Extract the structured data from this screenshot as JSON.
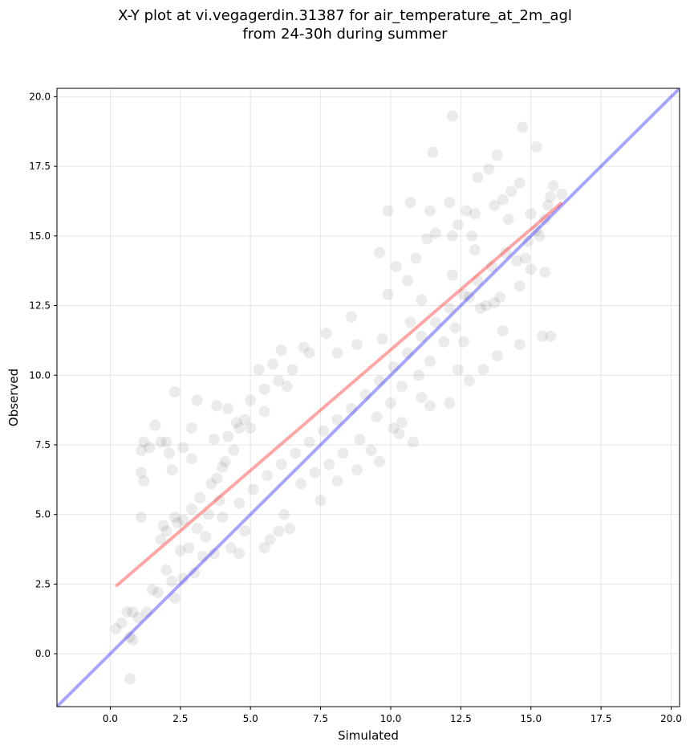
{
  "title_line1": "X-Y plot at vi.vegagerdin.31387 for air_temperature_at_2m_agl",
  "title_line2": "from 24-30h during summer",
  "chart_data": {
    "type": "scatter",
    "title": "X-Y plot at vi.vegagerdin.31387 for air_temperature_at_2m_agl from 24-30h during summer",
    "xlabel": "Simulated",
    "ylabel": "Observed",
    "xlim": [
      -1.9,
      20.3
    ],
    "ylim": [
      -1.9,
      20.3
    ],
    "xticks": [
      "0.0",
      "2.5",
      "5.0",
      "7.5",
      "10.0",
      "12.5",
      "15.0",
      "17.5",
      "20.0"
    ],
    "yticks": [
      "0.0",
      "2.5",
      "5.0",
      "7.5",
      "10.0",
      "12.5",
      "15.0",
      "17.5",
      "20.0"
    ],
    "grid": true,
    "point_color": "#000000",
    "point_opacity": 0.08,
    "identity_line": {
      "color": "#0000ff",
      "x": [
        -1.9,
        20.3
      ],
      "y": [
        -1.9,
        20.3
      ]
    },
    "fit_line": {
      "color": "#ff0000",
      "x": [
        0.2,
        16.1
      ],
      "y": [
        2.42,
        16.2
      ]
    },
    "points": [
      [
        0.2,
        0.9
      ],
      [
        0.4,
        1.1
      ],
      [
        0.6,
        1.5
      ],
      [
        0.8,
        1.5
      ],
      [
        0.7,
        0.6
      ],
      [
        0.8,
        0.5
      ],
      [
        0.7,
        -0.9
      ],
      [
        1.0,
        1.3
      ],
      [
        1.3,
        1.5
      ],
      [
        1.1,
        4.9
      ],
      [
        1.1,
        6.5
      ],
      [
        1.2,
        6.2
      ],
      [
        1.1,
        7.3
      ],
      [
        1.2,
        7.6
      ],
      [
        1.4,
        7.4
      ],
      [
        1.6,
        8.2
      ],
      [
        1.8,
        7.6
      ],
      [
        2.0,
        7.6
      ],
      [
        2.2,
        6.6
      ],
      [
        2.3,
        9.4
      ],
      [
        2.1,
        7.2
      ],
      [
        2.6,
        7.4
      ],
      [
        2.9,
        7.0
      ],
      [
        3.1,
        9.1
      ],
      [
        2.9,
        8.1
      ],
      [
        1.9,
        4.6
      ],
      [
        2.0,
        4.4
      ],
      [
        1.8,
        4.1
      ],
      [
        2.3,
        4.9
      ],
      [
        2.4,
        4.7
      ],
      [
        2.2,
        2.6
      ],
      [
        1.5,
        2.3
      ],
      [
        1.7,
        2.2
      ],
      [
        2.0,
        3.0
      ],
      [
        2.3,
        2.0
      ],
      [
        2.6,
        2.7
      ],
      [
        2.8,
        3.8
      ],
      [
        3.0,
        2.9
      ],
      [
        3.3,
        3.5
      ],
      [
        3.7,
        3.6
      ],
      [
        4.3,
        3.8
      ],
      [
        2.5,
        3.7
      ],
      [
        3.1,
        4.5
      ],
      [
        3.5,
        5.0
      ],
      [
        3.9,
        5.5
      ],
      [
        4.6,
        3.6
      ],
      [
        4.8,
        4.4
      ],
      [
        5.5,
        3.8
      ],
      [
        6.0,
        4.4
      ],
      [
        6.4,
        4.5
      ],
      [
        6.2,
        5.0
      ],
      [
        5.7,
        4.1
      ],
      [
        3.8,
        6.3
      ],
      [
        4.1,
        6.9
      ],
      [
        4.2,
        7.8
      ],
      [
        4.6,
        8.1
      ],
      [
        4.2,
        8.8
      ],
      [
        4.8,
        8.4
      ],
      [
        3.8,
        8.9
      ],
      [
        5.3,
        10.2
      ],
      [
        5.8,
        10.4
      ],
      [
        6.1,
        10.9
      ],
      [
        6.9,
        11.0
      ],
      [
        5.0,
        9.1
      ],
      [
        5.5,
        9.5
      ],
      [
        6.3,
        9.6
      ],
      [
        3.7,
        7.7
      ],
      [
        4.5,
        8.3
      ],
      [
        9.6,
        14.4
      ],
      [
        9.9,
        15.9
      ],
      [
        10.7,
        16.2
      ],
      [
        11.4,
        15.9
      ],
      [
        12.1,
        16.2
      ],
      [
        12.4,
        15.4
      ],
      [
        12.7,
        15.9
      ],
      [
        13.0,
        15.8
      ],
      [
        11.5,
        18.0
      ],
      [
        12.2,
        19.3
      ],
      [
        13.1,
        17.1
      ],
      [
        13.5,
        17.4
      ],
      [
        13.8,
        17.9
      ],
      [
        14.3,
        16.6
      ],
      [
        14.7,
        18.9
      ],
      [
        15.2,
        18.2
      ],
      [
        14.6,
        16.9
      ],
      [
        14.0,
        16.3
      ],
      [
        13.7,
        16.1
      ],
      [
        12.9,
        15.0
      ],
      [
        12.2,
        15.0
      ],
      [
        11.3,
        14.9
      ],
      [
        10.6,
        13.4
      ],
      [
        10.2,
        13.9
      ],
      [
        10.9,
        14.2
      ],
      [
        11.6,
        15.1
      ],
      [
        15.0,
        15.8
      ],
      [
        15.6,
        16.1
      ],
      [
        15.7,
        16.4
      ],
      [
        16.1,
        16.5
      ],
      [
        15.8,
        16.8
      ],
      [
        15.5,
        15.6
      ],
      [
        15.3,
        15.0
      ],
      [
        14.8,
        14.2
      ],
      [
        14.6,
        13.2
      ],
      [
        15.0,
        13.8
      ],
      [
        15.5,
        13.7
      ],
      [
        15.4,
        11.4
      ],
      [
        15.7,
        11.4
      ],
      [
        14.6,
        11.1
      ],
      [
        13.8,
        10.7
      ],
      [
        13.3,
        10.2
      ],
      [
        12.4,
        10.2
      ],
      [
        12.8,
        9.8
      ],
      [
        12.1,
        9.0
      ],
      [
        11.4,
        8.9
      ],
      [
        10.8,
        7.6
      ],
      [
        10.4,
        8.3
      ],
      [
        10.3,
        7.9
      ],
      [
        9.6,
        6.9
      ],
      [
        14.0,
        11.6
      ],
      [
        13.7,
        12.6
      ],
      [
        13.4,
        12.5
      ],
      [
        13.2,
        12.4
      ],
      [
        12.8,
        12.8
      ],
      [
        12.3,
        11.7
      ],
      [
        11.9,
        11.2
      ],
      [
        11.4,
        10.5
      ],
      [
        11.0,
        10.0
      ],
      [
        10.4,
        9.6
      ],
      [
        10.0,
        9.0
      ],
      [
        9.5,
        8.5
      ],
      [
        8.9,
        7.7
      ],
      [
        8.3,
        7.2
      ],
      [
        7.8,
        6.8
      ],
      [
        7.3,
        6.5
      ],
      [
        6.8,
        6.1
      ],
      [
        7.5,
        5.5
      ],
      [
        8.1,
        6.2
      ],
      [
        8.8,
        6.6
      ],
      [
        9.3,
        7.3
      ],
      [
        10.1,
        8.1
      ],
      [
        11.1,
        9.2
      ],
      [
        12.6,
        11.2
      ],
      [
        13.9,
        12.8
      ],
      [
        14.5,
        14.1
      ],
      [
        14.9,
        14.8
      ],
      [
        15.2,
        15.2
      ],
      [
        14.2,
        15.6
      ],
      [
        13.0,
        14.5
      ],
      [
        12.2,
        13.6
      ],
      [
        11.1,
        12.7
      ],
      [
        10.7,
        11.9
      ],
      [
        9.7,
        11.3
      ],
      [
        8.8,
        11.1
      ],
      [
        8.1,
        10.8
      ],
      [
        7.7,
        11.5
      ],
      [
        7.1,
        10.8
      ],
      [
        6.5,
        10.2
      ],
      [
        6.0,
        9.8
      ],
      [
        5.5,
        8.7
      ],
      [
        5.0,
        8.1
      ],
      [
        4.4,
        7.3
      ],
      [
        4.0,
        6.7
      ],
      [
        3.6,
        6.1
      ],
      [
        3.2,
        5.6
      ],
      [
        2.9,
        5.2
      ],
      [
        2.6,
        4.8
      ],
      [
        3.4,
        4.2
      ],
      [
        4.0,
        4.9
      ],
      [
        4.6,
        5.4
      ],
      [
        5.1,
        5.9
      ],
      [
        5.6,
        6.4
      ],
      [
        6.1,
        6.8
      ],
      [
        6.6,
        7.2
      ],
      [
        7.1,
        7.6
      ],
      [
        7.6,
        8.0
      ],
      [
        8.1,
        8.4
      ],
      [
        8.6,
        8.8
      ],
      [
        9.1,
        9.3
      ],
      [
        9.6,
        9.8
      ],
      [
        10.1,
        10.3
      ],
      [
        10.6,
        10.8
      ],
      [
        11.1,
        11.4
      ],
      [
        11.6,
        11.9
      ],
      [
        12.1,
        12.4
      ],
      [
        12.6,
        12.9
      ],
      [
        13.1,
        13.4
      ],
      [
        13.6,
        13.9
      ],
      [
        14.1,
        14.4
      ],
      [
        9.9,
        12.9
      ],
      [
        8.6,
        12.1
      ]
    ]
  }
}
